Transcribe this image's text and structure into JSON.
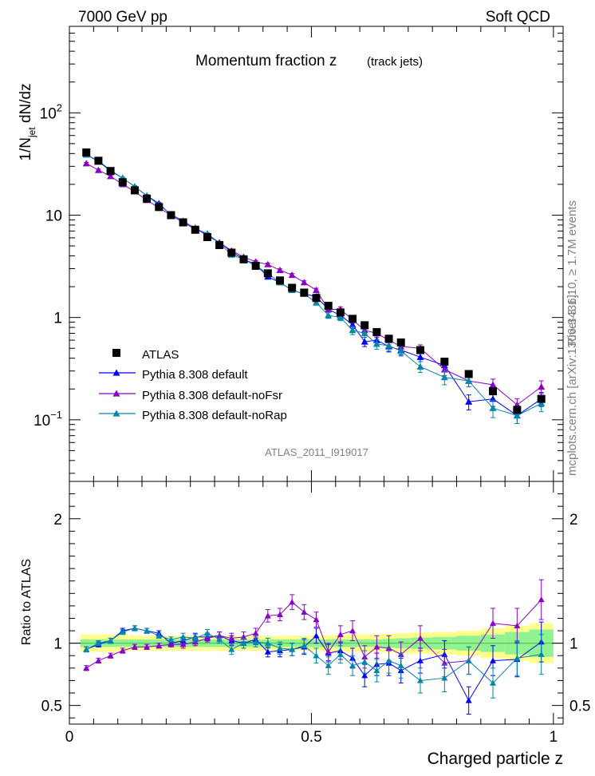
{
  "header": {
    "left": "7000 GeV pp",
    "right": "Soft QCD"
  },
  "side_labels": {
    "rivet": "Rivet 3.1.10,  ≥ 1.7M events",
    "mcplots": "mcplots.cern.ch [arXiv:1306.3436]"
  },
  "chart_data": [
    {
      "type": "scatter",
      "title": "Momentum fraction z",
      "subtitle": "(track jets)",
      "analysis_tag": "ATLAS_2011_I919017",
      "ylabel": "1/N_jet dN/dz",
      "ylabel_parts": {
        "a": "1/N",
        "sub": "jet",
        "b": " dN/dz"
      },
      "yscale": "log",
      "xlim": [
        0,
        1.02
      ],
      "ylim": [
        0.025,
        700
      ],
      "ytick_labels": [
        {
          "value": 0.1,
          "base": "10",
          "exp": "−1"
        },
        {
          "value": 1,
          "base": "1",
          "exp": ""
        },
        {
          "value": 10,
          "base": "10",
          "exp": ""
        },
        {
          "value": 100,
          "base": "10",
          "exp": "2"
        }
      ],
      "legend_position": "lower-left",
      "x": [
        0.035,
        0.06,
        0.085,
        0.11,
        0.135,
        0.16,
        0.185,
        0.21,
        0.235,
        0.26,
        0.285,
        0.31,
        0.335,
        0.36,
        0.385,
        0.41,
        0.435,
        0.46,
        0.485,
        0.51,
        0.535,
        0.56,
        0.585,
        0.61,
        0.635,
        0.66,
        0.685,
        0.725,
        0.775,
        0.825,
        0.875,
        0.925,
        0.975
      ],
      "series": [
        {
          "name": "ATLAS",
          "color": "#000000",
          "marker": "square",
          "values": [
            41,
            34,
            27,
            21,
            17.5,
            14.5,
            12,
            10,
            8.5,
            7.2,
            6.1,
            5.1,
            4.3,
            3.7,
            3.2,
            2.7,
            2.3,
            1.95,
            1.75,
            1.55,
            1.3,
            1.12,
            0.97,
            0.84,
            0.72,
            0.62,
            0.57,
            0.48,
            0.37,
            0.28,
            0.19,
            0.125,
            0.16
          ],
          "errors": [
            0,
            0,
            0,
            0,
            0,
            0,
            0,
            0,
            0,
            0,
            0,
            0,
            0,
            0,
            0,
            0,
            0,
            0,
            0,
            0,
            0,
            0,
            0,
            0,
            0,
            0,
            0,
            0,
            0,
            0,
            0,
            0,
            0
          ]
        },
        {
          "name": "Pythia 8.308 default",
          "color": "#0000ff",
          "marker": "triangle",
          "values": [
            39,
            33.5,
            27,
            23,
            19,
            15.5,
            13,
            10,
            8.6,
            7.5,
            6.3,
            5.4,
            4.4,
            3.7,
            3.3,
            2.5,
            2.2,
            1.85,
            1.7,
            1.6,
            1.2,
            1.05,
            0.85,
            0.58,
            0.6,
            0.52,
            0.48,
            0.41,
            0.34,
            0.15,
            0.16,
            0.11,
            0.16
          ],
          "errors": [
            0.9,
            0.8,
            0.6,
            0.5,
            0.4,
            0.35,
            0.3,
            0.25,
            0.2,
            0.18,
            0.16,
            0.13,
            0.12,
            0.11,
            0.1,
            0.09,
            0.08,
            0.08,
            0.08,
            0.08,
            0.07,
            0.07,
            0.07,
            0.06,
            0.06,
            0.06,
            0.05,
            0.04,
            0.04,
            0.025,
            0.025,
            0.018,
            0.025
          ]
        },
        {
          "name": "Pythia 8.308 default-noFsr",
          "color": "#8b00c8",
          "marker": "triangle",
          "values": [
            32,
            27.5,
            24,
            20,
            17,
            14,
            11.8,
            10,
            8.5,
            7.3,
            6.5,
            5.4,
            4.5,
            3.9,
            3.5,
            3.3,
            2.9,
            2.6,
            2.2,
            1.85,
            1.2,
            1.2,
            0.95,
            0.75,
            0.7,
            0.6,
            0.52,
            0.5,
            0.31,
            0.24,
            0.22,
            0.14,
            0.21
          ],
          "errors": [
            0.8,
            0.7,
            0.6,
            0.5,
            0.4,
            0.35,
            0.3,
            0.25,
            0.2,
            0.18,
            0.16,
            0.13,
            0.12,
            0.11,
            0.1,
            0.1,
            0.09,
            0.09,
            0.08,
            0.08,
            0.07,
            0.07,
            0.07,
            0.06,
            0.06,
            0.06,
            0.05,
            0.04,
            0.04,
            0.03,
            0.03,
            0.02,
            0.03
          ]
        },
        {
          "name": "Pythia 8.308 default-noRap",
          "color": "#0087aa",
          "marker": "triangle",
          "values": [
            39,
            34,
            27.5,
            23,
            19,
            15.5,
            12.6,
            10.2,
            8.8,
            7.4,
            6.6,
            5.3,
            4.1,
            3.7,
            3.2,
            2.7,
            2.2,
            1.85,
            1.7,
            1.4,
            1.05,
            1.0,
            0.75,
            0.7,
            0.55,
            0.53,
            0.47,
            0.33,
            0.26,
            0.24,
            0.13,
            0.11,
            0.145
          ],
          "errors": [
            0.9,
            0.8,
            0.6,
            0.5,
            0.4,
            0.35,
            0.3,
            0.25,
            0.2,
            0.18,
            0.16,
            0.13,
            0.12,
            0.11,
            0.1,
            0.09,
            0.08,
            0.08,
            0.08,
            0.08,
            0.07,
            0.07,
            0.07,
            0.06,
            0.06,
            0.06,
            0.05,
            0.04,
            0.04,
            0.03,
            0.025,
            0.018,
            0.025
          ]
        }
      ]
    },
    {
      "type": "scatter",
      "ylabel": "Ratio to ATLAS",
      "xlabel": "Charged particle z",
      "xlim": [
        0,
        1.02
      ],
      "ylim": [
        0.35,
        2.3
      ],
      "xtick_labels": [
        "0",
        "0.5",
        "1"
      ],
      "ytick_labels": [
        "0.5",
        "1",
        "2"
      ],
      "x": [
        0.035,
        0.06,
        0.085,
        0.11,
        0.135,
        0.16,
        0.185,
        0.21,
        0.235,
        0.26,
        0.285,
        0.31,
        0.335,
        0.36,
        0.385,
        0.41,
        0.435,
        0.46,
        0.485,
        0.51,
        0.535,
        0.56,
        0.585,
        0.61,
        0.635,
        0.66,
        0.685,
        0.725,
        0.775,
        0.825,
        0.875,
        0.925,
        0.975
      ],
      "band_inner_halfwidth": [
        0.03,
        0.03,
        0.03,
        0.03,
        0.03,
        0.03,
        0.03,
        0.03,
        0.03,
        0.03,
        0.03,
        0.03,
        0.03,
        0.03,
        0.03,
        0.03,
        0.03,
        0.03,
        0.03,
        0.03,
        0.03,
        0.03,
        0.03,
        0.03,
        0.03,
        0.035,
        0.04,
        0.045,
        0.05,
        0.06,
        0.07,
        0.09,
        0.11
      ],
      "band_outer_halfwidth": [
        0.07,
        0.07,
        0.07,
        0.065,
        0.06,
        0.06,
        0.06,
        0.06,
        0.06,
        0.06,
        0.06,
        0.06,
        0.06,
        0.06,
        0.06,
        0.06,
        0.06,
        0.06,
        0.06,
        0.06,
        0.065,
        0.065,
        0.07,
        0.07,
        0.07,
        0.075,
        0.08,
        0.085,
        0.09,
        0.1,
        0.12,
        0.14,
        0.16
      ],
      "series": [
        {
          "name": "Pythia 8.308 default",
          "color": "#0000ff",
          "marker": "triangle",
          "values": [
            0.95,
            0.99,
            1.02,
            1.1,
            1.12,
            1.1,
            1.08,
            1.0,
            1.02,
            1.05,
            1.05,
            1.06,
            1.02,
            1.0,
            1.03,
            0.93,
            0.94,
            0.95,
            0.97,
            1.06,
            0.92,
            0.94,
            0.88,
            0.74,
            0.83,
            0.84,
            0.78,
            0.86,
            0.91,
            0.54,
            0.86,
            0.87,
            1.01
          ],
          "errors": [
            0.02,
            0.02,
            0.02,
            0.02,
            0.02,
            0.02,
            0.02,
            0.02,
            0.03,
            0.03,
            0.03,
            0.03,
            0.04,
            0.04,
            0.04,
            0.04,
            0.05,
            0.05,
            0.06,
            0.06,
            0.07,
            0.07,
            0.08,
            0.09,
            0.09,
            0.1,
            0.1,
            0.1,
            0.11,
            0.11,
            0.12,
            0.14,
            0.16
          ]
        },
        {
          "name": "Pythia 8.308 default-noFsr",
          "color": "#8b00c8",
          "marker": "triangle",
          "values": [
            0.8,
            0.86,
            0.9,
            0.94,
            0.97,
            0.97,
            0.98,
            0.99,
            0.99,
            1.01,
            1.04,
            1.06,
            1.04,
            1.05,
            1.08,
            1.22,
            1.23,
            1.33,
            1.25,
            1.19,
            0.93,
            1.07,
            1.1,
            0.89,
            0.97,
            0.96,
            0.91,
            1.04,
            0.84,
            0.86,
            1.16,
            1.14,
            1.35
          ],
          "errors": [
            0.02,
            0.02,
            0.02,
            0.02,
            0.02,
            0.02,
            0.02,
            0.02,
            0.03,
            0.03,
            0.03,
            0.03,
            0.04,
            0.04,
            0.04,
            0.05,
            0.05,
            0.06,
            0.06,
            0.06,
            0.07,
            0.07,
            0.08,
            0.09,
            0.09,
            0.1,
            0.1,
            0.1,
            0.11,
            0.11,
            0.12,
            0.14,
            0.16
          ]
        },
        {
          "name": "Pythia 8.308 default-noRap",
          "color": "#0087aa",
          "marker": "triangle",
          "values": [
            0.95,
            1.0,
            1.02,
            1.09,
            1.12,
            1.1,
            1.06,
            1.03,
            1.05,
            1.04,
            1.08,
            1.03,
            0.95,
            1.0,
            1.01,
            1.0,
            0.96,
            0.95,
            0.98,
            0.9,
            0.82,
            0.91,
            0.82,
            0.85,
            0.78,
            0.86,
            0.82,
            0.7,
            0.72,
            0.86,
            0.68,
            0.88,
            0.91
          ],
          "errors": [
            0.02,
            0.02,
            0.02,
            0.02,
            0.02,
            0.02,
            0.02,
            0.02,
            0.03,
            0.03,
            0.03,
            0.03,
            0.04,
            0.04,
            0.04,
            0.04,
            0.05,
            0.05,
            0.06,
            0.06,
            0.07,
            0.07,
            0.08,
            0.09,
            0.09,
            0.1,
            0.1,
            0.1,
            0.11,
            0.11,
            0.12,
            0.14,
            0.16
          ]
        }
      ]
    }
  ]
}
